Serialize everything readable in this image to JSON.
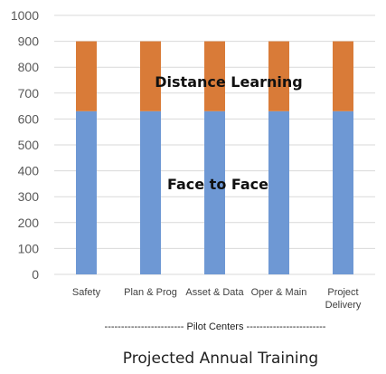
{
  "chart_data": {
    "type": "bar",
    "stacked": true,
    "title": "Projected Annual Training",
    "xlabel": "------------------------ Pilot Centers ------------------------",
    "ylabel": "",
    "ylim": [
      0,
      1000
    ],
    "yticks": [
      0,
      100,
      200,
      300,
      400,
      500,
      600,
      700,
      800,
      900,
      1000
    ],
    "grid": true,
    "legend": "none",
    "categories": [
      [
        "Safety"
      ],
      [
        "Plan & Prog"
      ],
      [
        "Asset & Data"
      ],
      [
        "Oper & Main"
      ],
      [
        "Project",
        "Delivery"
      ]
    ],
    "series": [
      {
        "values": [
          630,
          630,
          630,
          630,
          630
        ],
        "color": "#6e98d4"
      },
      {
        "values": [
          270,
          270,
          270,
          270,
          270
        ],
        "color": "#d97b38"
      }
    ],
    "annotations": [
      "Distance Learning",
      "Face to Face"
    ]
  }
}
